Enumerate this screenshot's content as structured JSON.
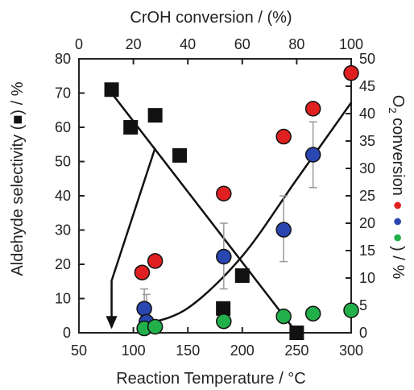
{
  "chart_data": {
    "type": "scatter",
    "title": "",
    "xlabel": "Reaction Temperature / °C",
    "x2label": "CrOH conversion / (%)",
    "ylabel_left_before": "Aldehyde selectivity (",
    "ylabel_left_after": ") / %",
    "ylabel_right_before": "O",
    "ylabel_right_sub": "2",
    "ylabel_right_after": " conversion",
    "ylabel_right_tail": ") / %",
    "xlim": [
      50,
      300
    ],
    "x2lim": [
      0,
      100
    ],
    "ylim": [
      0,
      80
    ],
    "y2lim": [
      0,
      50
    ],
    "x_ticks": [
      "50",
      "100",
      "150",
      "200",
      "250",
      "300"
    ],
    "x2_ticks": [
      "0",
      "20",
      "40",
      "60",
      "80",
      "100"
    ],
    "y_ticks": [
      "0",
      "10",
      "20",
      "30",
      "40",
      "50",
      "60",
      "70",
      "80"
    ],
    "y2_ticks": [
      "0",
      "5",
      "10",
      "15",
      "20",
      "25",
      "30",
      "35",
      "40",
      "45",
      "50"
    ],
    "colors": {
      "selectivity": "#111111",
      "red": "#e02020",
      "blue": "#2a46b0",
      "green": "#22b04a",
      "axis": "#222222",
      "error": "#999999"
    },
    "series": [
      {
        "marker": "square",
        "axis": "selectivity_vs_conversion",
        "points": [
          [
            12,
            71
          ],
          [
            19,
            60
          ],
          [
            28,
            63.5
          ],
          [
            37,
            51.8
          ],
          [
            53,
            7.1
          ],
          [
            60,
            16.7
          ],
          [
            80,
            0
          ]
        ]
      },
      {
        "marker": "circle",
        "color": "red",
        "axis": "o2_vs_temperature",
        "points": [
          [
            108,
            11
          ],
          [
            120,
            13.1
          ],
          [
            183,
            25.4
          ],
          [
            238,
            35.8
          ],
          [
            265,
            40.9
          ],
          [
            300,
            47.4
          ]
        ]
      },
      {
        "marker": "circle",
        "color": "blue",
        "axis": "o2_vs_temperature",
        "points": [
          [
            110,
            4.4
          ],
          [
            112,
            2
          ],
          [
            183,
            13.9
          ],
          [
            238,
            18.8
          ],
          [
            265,
            32.5
          ]
        ],
        "errors": [
          [
            110,
            3,
            8
          ],
          [
            112,
            1,
            7
          ],
          [
            183,
            8,
            20
          ],
          [
            238,
            13,
            25
          ],
          [
            265,
            26.5,
            38.5
          ]
        ]
      },
      {
        "marker": "circle",
        "color": "green",
        "axis": "o2_vs_temperature",
        "points": [
          [
            110,
            0.8
          ],
          [
            120,
            1.1
          ],
          [
            183,
            2.1
          ],
          [
            238,
            3
          ],
          [
            265,
            3.5
          ],
          [
            300,
            4.1
          ]
        ]
      }
    ],
    "trend_lines": {
      "selectivity_line": [
        [
          12,
          70
        ],
        [
          80,
          0
        ]
      ],
      "o2_curve": [
        [
          110,
          1.5
        ],
        [
          150,
          4.5
        ],
        [
          200,
          14
        ],
        [
          250,
          28
        ],
        [
          300,
          42
        ]
      ],
      "arrow_path": [
        [
          28,
          54
        ],
        [
          12,
          15.2
        ],
        [
          12,
          1.6
        ]
      ]
    }
  }
}
